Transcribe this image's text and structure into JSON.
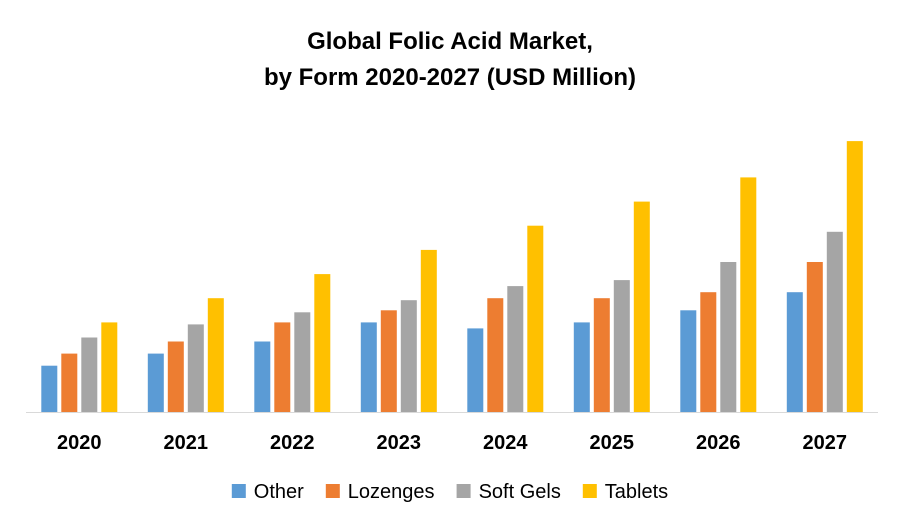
{
  "chart_data": {
    "type": "bar",
    "title_line1": "Global Folic Acid Market,",
    "title_line2": "by Form 2020-2027 (USD Million)",
    "xlabel": "",
    "ylabel": "",
    "categories": [
      "2020",
      "2021",
      "2022",
      "2023",
      "2024",
      "2025",
      "2026",
      "2027"
    ],
    "series": [
      {
        "name": "Other",
        "color": "#5B9BD5",
        "values": [
          46,
          58,
          70,
          89,
          83,
          89,
          101,
          119
        ]
      },
      {
        "name": "Lozenges",
        "color": "#ED7D31",
        "values": [
          58,
          70,
          89,
          101,
          113,
          113,
          119,
          149
        ]
      },
      {
        "name": "Soft Gels",
        "color": "#A5A5A5",
        "values": [
          74,
          87,
          99,
          111,
          125,
          131,
          149,
          179
        ]
      },
      {
        "name": "Tablets",
        "color": "#FFC000",
        "values": [
          89,
          113,
          137,
          161,
          185,
          209,
          233,
          269
        ]
      }
    ],
    "ylim": [
      0,
      290
    ],
    "grid": false,
    "legend_position": "bottom"
  }
}
